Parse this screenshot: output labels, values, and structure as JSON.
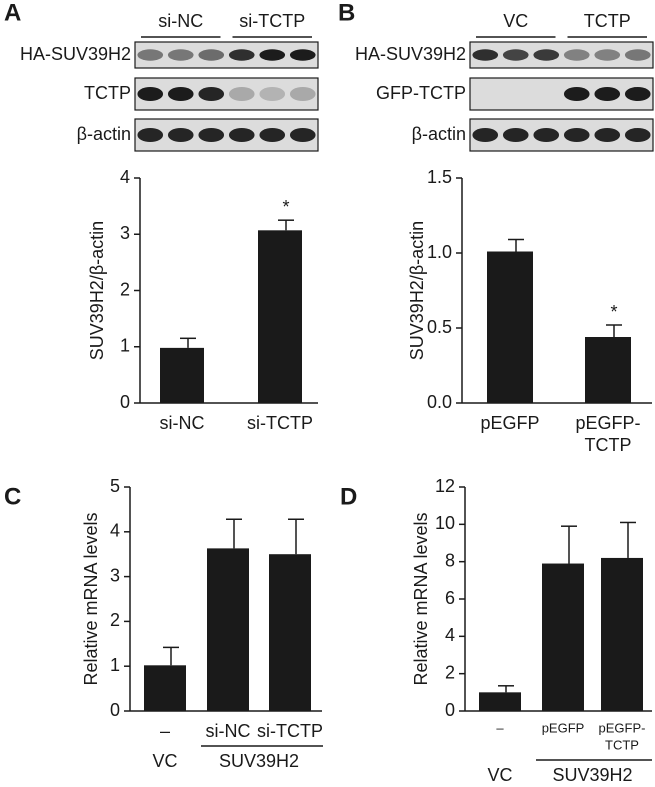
{
  "panel_labels": [
    "A",
    "B",
    "C",
    "D"
  ],
  "blots": [
    {
      "groups": [
        "si-NC",
        "si-TCTP"
      ],
      "rows": [
        "HA-SUV39H2",
        "TCTP",
        "β-actin"
      ]
    },
    {
      "groups": [
        "VC",
        "TCTP"
      ],
      "rows": [
        "HA-SUV39H2",
        "GFP-TCTP",
        "β-actin"
      ]
    }
  ],
  "chart_data": [
    {
      "type": "bar",
      "y_label": "SUV39H2/β-actin",
      "categories": [
        [
          "si-NC"
        ],
        [
          "si-TCTP"
        ]
      ],
      "values": [
        0.98,
        3.07
      ],
      "errors": [
        0.17,
        0.18
      ],
      "markers": [
        null,
        "*"
      ],
      "color": "#1a1a1a",
      "ylim": [
        0,
        4
      ],
      "yticks": [
        0,
        1,
        2,
        3,
        4
      ]
    },
    {
      "type": "bar",
      "y_label": "SUV39H2/β-actin",
      "categories": [
        [
          "pEGFP"
        ],
        [
          "pEGFP-",
          "TCTP"
        ]
      ],
      "values": [
        1.01,
        0.44
      ],
      "errors": [
        0.08,
        0.08
      ],
      "markers": [
        null,
        "*"
      ],
      "color": "#1a1a1a",
      "ylim": [
        0,
        1.5
      ],
      "yticks": [
        {
          "value": 0,
          "label": "0.0"
        },
        {
          "value": 0.5,
          "label": "0.5"
        },
        {
          "value": 1,
          "label": "1.0"
        },
        {
          "value": 1.5,
          "label": "1.5"
        }
      ]
    },
    {
      "type": "bar",
      "y_label": "Relative mRNA levels",
      "categories": [
        [
          "–"
        ],
        [
          "si-NC"
        ],
        [
          "si-TCTP"
        ]
      ],
      "groups": [
        "VC",
        "SUV39H2"
      ],
      "values": [
        1.02,
        3.63,
        3.5
      ],
      "errors": [
        0.4,
        0.65,
        0.78
      ],
      "color": "#1a1a1a",
      "ylim": [
        0,
        5
      ],
      "yticks": [
        0,
        1,
        2,
        3,
        4,
        5
      ]
    },
    {
      "type": "bar",
      "y_label": "Relative mRNA levels",
      "categories": [
        [
          "–"
        ],
        [
          "pEGFP"
        ],
        [
          "pEGFP-",
          "TCTP"
        ]
      ],
      "groups": [
        "VC",
        "SUV39H2"
      ],
      "values": [
        1.0,
        7.9,
        8.2
      ],
      "errors": [
        0.35,
        2.0,
        1.9
      ],
      "color": "#1a1a1a",
      "ylim": [
        0,
        12
      ],
      "yticks": [
        0,
        2,
        4,
        6,
        8,
        10,
        12
      ]
    }
  ]
}
